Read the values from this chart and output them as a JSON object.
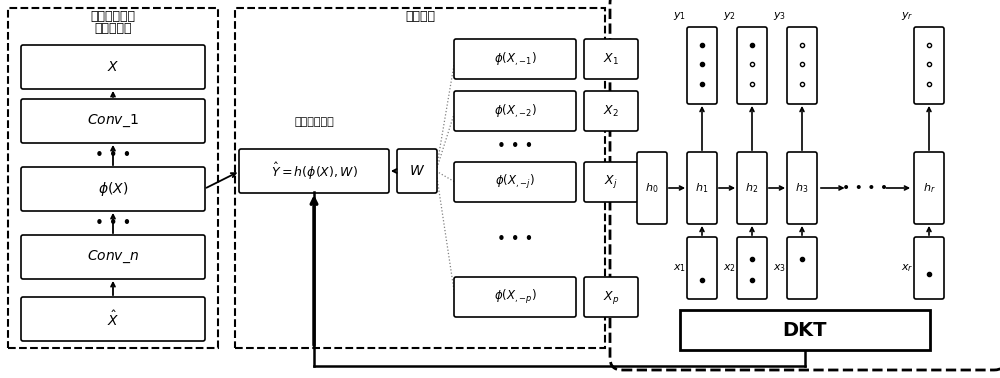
{
  "bg_color": "#ffffff",
  "text_color": "#000000",
  "section1_title_line1": "卷积神经网络",
  "section1_title_line2": "自动编码器",
  "section2_title": "全局均衡",
  "section3_label": "稳定知识追踪",
  "dkt_label": "DKT",
  "cnn_labels": [
    "$\\hat{X}$",
    "$Conv\\_n$",
    "$\\phi(X)$",
    "$Conv\\_1$",
    "$X$"
  ],
  "phi_labels": [
    "$\\phi(X_{,{-1}})$",
    "$\\phi(X_{,{-2}})$",
    "$\\phi(X_{,{-j}})$",
    "$\\phi(X_{,{-p}})$"
  ],
  "xi_labels": [
    "$X_1$",
    "$X_2$",
    "$X_j$",
    "$X_p$"
  ],
  "h_labels": [
    "$h_0$",
    "$h_1$",
    "$h_2$",
    "$h_3$",
    "$h_r$"
  ],
  "x_labels": [
    "$x_1$",
    "$x_2$",
    "$x_3$",
    "$x_r$"
  ],
  "y_labels": [
    "$y_1$",
    "$y_2$",
    "$y_3$",
    "$y_r$"
  ],
  "eq_label": "$\\hat{Y}=h(\\phi(X),W)$",
  "w_label": "$W$"
}
